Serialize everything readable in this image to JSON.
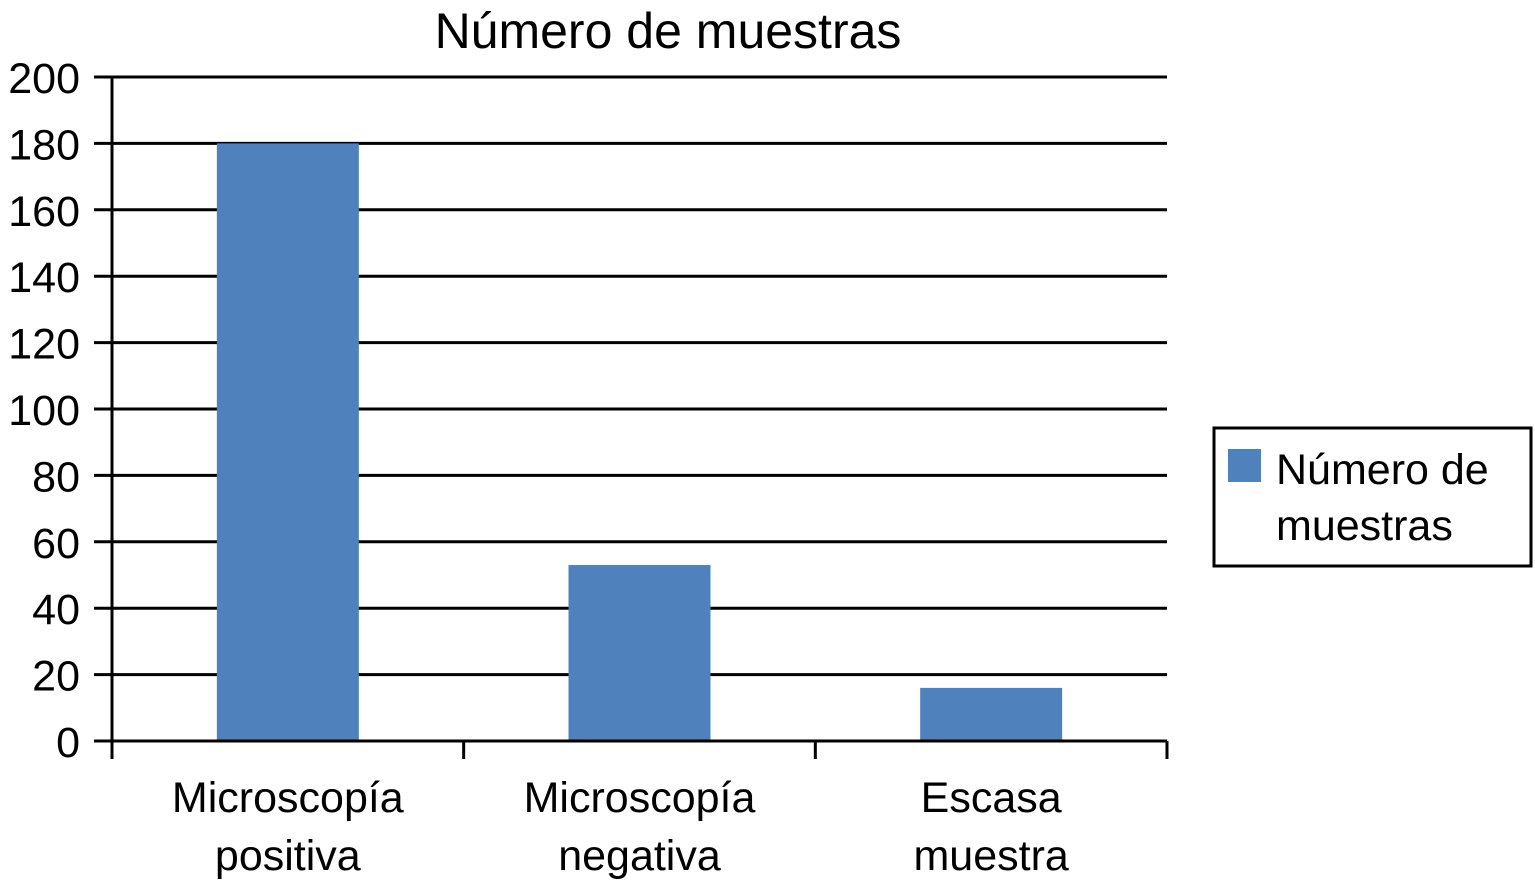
{
  "chart_data": {
    "type": "bar",
    "title": "Número de muestras",
    "xlabel": "",
    "ylabel": "",
    "categories": [
      [
        "Microscopía",
        "positiva"
      ],
      [
        "Microscopía",
        "negativa"
      ],
      [
        "Escasa",
        "muestra"
      ]
    ],
    "series": [
      {
        "name": "Número de muestras",
        "legend_lines": [
          "Número de",
          "muestras"
        ],
        "values": [
          180,
          53,
          16
        ],
        "color": "#4f81bd"
      }
    ],
    "ylim": [
      0,
      200
    ],
    "yticks": [
      "0",
      "20",
      "40",
      "60",
      "80",
      "100",
      "120",
      "140",
      "160",
      "180",
      "200"
    ],
    "grid": true,
    "legend_position": "right"
  }
}
